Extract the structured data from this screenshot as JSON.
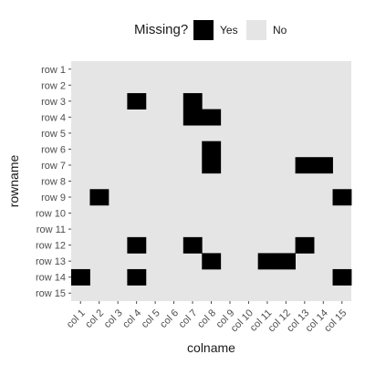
{
  "chart_data": {
    "type": "heatmap",
    "legend": {
      "title": "Missing?",
      "placement": "top",
      "entries": [
        {
          "label": "Yes",
          "color": "#000000"
        },
        {
          "label": "No",
          "color": "#e5e5e5"
        }
      ]
    },
    "xlabel": "colname",
    "ylabel": "rowname",
    "columns": [
      "col 1",
      "col 2",
      "col 3",
      "col 4",
      "col 5",
      "col 6",
      "col 7",
      "col 8",
      "col 9",
      "col 10",
      "col 11",
      "col 12",
      "col 13",
      "col 14",
      "col 15"
    ],
    "rows": [
      "row 1",
      "row 2",
      "row 3",
      "row 4",
      "row 5",
      "row 6",
      "row 7",
      "row 8",
      "row 9",
      "row 10",
      "row 11",
      "row 12",
      "row 13",
      "row 14",
      "row 15"
    ],
    "missing_cells": [
      {
        "row": "row 3",
        "col": "col 4"
      },
      {
        "row": "row 3",
        "col": "col 7"
      },
      {
        "row": "row 4",
        "col": "col 7"
      },
      {
        "row": "row 4",
        "col": "col 8"
      },
      {
        "row": "row 6",
        "col": "col 8"
      },
      {
        "row": "row 7",
        "col": "col 8"
      },
      {
        "row": "row 7",
        "col": "col 13"
      },
      {
        "row": "row 7",
        "col": "col 14"
      },
      {
        "row": "row 9",
        "col": "col 2"
      },
      {
        "row": "row 9",
        "col": "col 15"
      },
      {
        "row": "row 12",
        "col": "col 4"
      },
      {
        "row": "row 12",
        "col": "col 7"
      },
      {
        "row": "row 12",
        "col": "col 13"
      },
      {
        "row": "row 13",
        "col": "col 8"
      },
      {
        "row": "row 13",
        "col": "col 11"
      },
      {
        "row": "row 13",
        "col": "col 12"
      },
      {
        "row": "row 14",
        "col": "col 1"
      },
      {
        "row": "row 14",
        "col": "col 4"
      },
      {
        "row": "row 14",
        "col": "col 15"
      }
    ],
    "grid": false
  }
}
